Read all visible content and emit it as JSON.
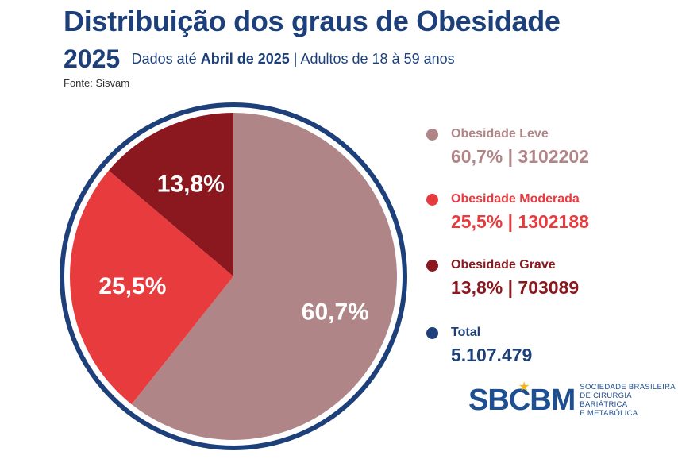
{
  "header": {
    "title": "Distribuição dos graus de Obesidade",
    "year": "2025",
    "subtitle_prefix": "Dados até",
    "subtitle_bold": "Abril de 2025",
    "subtitle_suffix": "| Adultos de 18 à 59 anos",
    "source": "Fonte: Sisvam"
  },
  "chart_data": {
    "type": "pie",
    "title": "Distribuição dos graus de Obesidade",
    "series": [
      {
        "name": "Obesidade Leve",
        "percent": 60.7,
        "percent_label": "60,7%",
        "count": 3102202,
        "value_label": "60,7% | 3102202",
        "color": "#b08587"
      },
      {
        "name": "Obesidade Moderada",
        "percent": 25.5,
        "percent_label": "25,5%",
        "count": 1302188,
        "value_label": "25,5% | 1302188",
        "color": "#e73b3e"
      },
      {
        "name": "Obesidade Grave",
        "percent": 13.8,
        "percent_label": "13,8%",
        "count": 703089,
        "value_label": "13,8% | 703089",
        "color": "#8a181e"
      }
    ],
    "total": {
      "name": "Total",
      "value": 5107479,
      "value_label": "5.107.479",
      "color": "#1d3f7a"
    },
    "legend_position": "right",
    "ring_color": "#1d3f7a"
  },
  "logo": {
    "mark": "SBCBM",
    "line1": "SOCIEDADE BRASILEIRA",
    "line2": "DE CIRURGIA BARIÁTRICA",
    "line3": "E METABÓLICA"
  }
}
